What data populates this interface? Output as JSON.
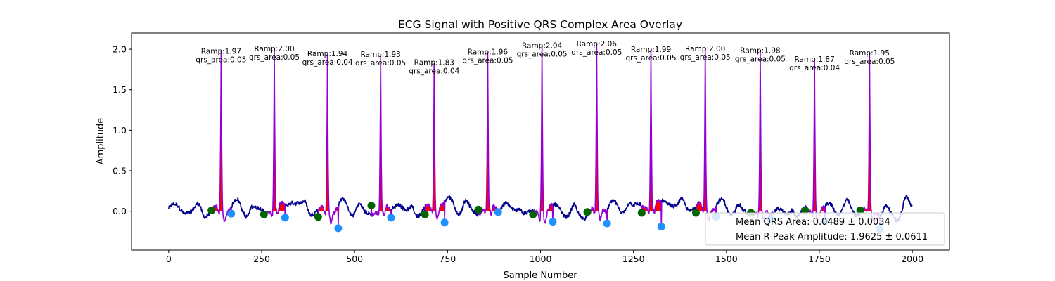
{
  "chart_data": {
    "type": "line",
    "title": "ECG Signal with Positive QRS Complex Area Overlay",
    "xlabel": "Sample Number",
    "ylabel": "Amplitude",
    "xlim": [
      -100,
      2100
    ],
    "ylim": [
      -0.48,
      2.2
    ],
    "xticks": [
      0,
      250,
      500,
      750,
      1000,
      1250,
      1500,
      1750,
      2000
    ],
    "yticks": [
      0.0,
      0.5,
      1.0,
      1.5,
      2.0
    ],
    "xtick_labels": [
      "0",
      "250",
      "500",
      "750",
      "1000",
      "1250",
      "1500",
      "1750",
      "2000"
    ],
    "ytick_labels": [
      "0.0",
      "0.5",
      "1.0",
      "1.5",
      "2.0"
    ],
    "grid": false,
    "colors": {
      "signal": "#00008b",
      "qrs_segment": "#9400d3",
      "qrs_area": "#ff0000",
      "onset_marker": "#006400",
      "offset_marker": "#1e90ff"
    },
    "beats": [
      {
        "r_x": 141,
        "onset_x": 115,
        "offset_x": 168,
        "ramp": 1.97,
        "qrs_area": 0.05,
        "onset_y": 0.01,
        "offset_y": -0.03,
        "ramp_label": "Ramp:1.97",
        "area_label": "qrs_area:0.05"
      },
      {
        "r_x": 284,
        "onset_x": 256,
        "offset_x": 313,
        "ramp": 2.0,
        "qrs_area": 0.05,
        "onset_y": -0.04,
        "offset_y": -0.08,
        "ramp_label": "Ramp:2.00",
        "area_label": "qrs_area:0.05"
      },
      {
        "r_x": 427,
        "onset_x": 402,
        "offset_x": 456,
        "ramp": 1.94,
        "qrs_area": 0.04,
        "onset_y": -0.07,
        "offset_y": -0.21,
        "ramp_label": "Ramp:1.94",
        "area_label": "qrs_area:0.04"
      },
      {
        "r_x": 570,
        "onset_x": 545,
        "offset_x": 598,
        "ramp": 1.93,
        "qrs_area": 0.05,
        "onset_y": 0.07,
        "offset_y": -0.08,
        "ramp_label": "Ramp:1.93",
        "area_label": "qrs_area:0.05"
      },
      {
        "r_x": 714,
        "onset_x": 689,
        "offset_x": 742,
        "ramp": 1.83,
        "qrs_area": 0.04,
        "onset_y": -0.04,
        "offset_y": -0.14,
        "ramp_label": "Ramp:1.83",
        "area_label": "qrs_area:0.04"
      },
      {
        "r_x": 858,
        "onset_x": 833,
        "offset_x": 886,
        "ramp": 1.96,
        "qrs_area": 0.05,
        "onset_y": 0.02,
        "offset_y": -0.01,
        "ramp_label": "Ramp:1.96",
        "area_label": "qrs_area:0.05"
      },
      {
        "r_x": 1004,
        "onset_x": 980,
        "offset_x": 1033,
        "ramp": 2.04,
        "qrs_area": 0.05,
        "onset_y": -0.04,
        "offset_y": -0.13,
        "ramp_label": "Ramp:2.04",
        "area_label": "qrs_area:0.05"
      },
      {
        "r_x": 1151,
        "onset_x": 1126,
        "offset_x": 1179,
        "ramp": 2.06,
        "qrs_area": 0.05,
        "onset_y": -0.01,
        "offset_y": -0.15,
        "ramp_label": "Ramp:2.06",
        "area_label": "qrs_area:0.05"
      },
      {
        "r_x": 1297,
        "onset_x": 1272,
        "offset_x": 1325,
        "ramp": 1.99,
        "qrs_area": 0.05,
        "onset_y": -0.02,
        "offset_y": -0.19,
        "ramp_label": "Ramp:1.99",
        "area_label": "qrs_area:0.05"
      },
      {
        "r_x": 1443,
        "onset_x": 1418,
        "offset_x": 1472,
        "ramp": 2.0,
        "qrs_area": 0.05,
        "onset_y": -0.02,
        "offset_y": -0.07,
        "ramp_label": "Ramp:2.00",
        "area_label": "qrs_area:0.05"
      },
      {
        "r_x": 1591,
        "onset_x": 1566,
        "offset_x": 1619,
        "ramp": 1.98,
        "qrs_area": 0.05,
        "onset_y": -0.02,
        "offset_y": -0.1,
        "ramp_label": "Ramp:1.98",
        "area_label": "qrs_area:0.05"
      },
      {
        "r_x": 1737,
        "onset_x": 1712,
        "offset_x": 1765,
        "ramp": 1.87,
        "qrs_area": 0.04,
        "onset_y": 0.01,
        "offset_y": -0.12,
        "ramp_label": "Ramp:1.87",
        "area_label": "qrs_area:0.04"
      },
      {
        "r_x": 1885,
        "onset_x": 1860,
        "offset_x": 1913,
        "ramp": 1.95,
        "qrs_area": 0.05,
        "onset_y": 0.01,
        "offset_y": -0.22,
        "ramp_label": "Ramp:1.95",
        "area_label": "qrs_area:0.05"
      }
    ],
    "signal_x_range": [
      0,
      2000
    ],
    "legend": {
      "placement": "lower-right",
      "entries": [
        "Mean QRS Area: 0.0489 ± 0.0034",
        "Mean R-Peak Amplitude: 1.9625 ± 0.0611"
      ]
    }
  }
}
